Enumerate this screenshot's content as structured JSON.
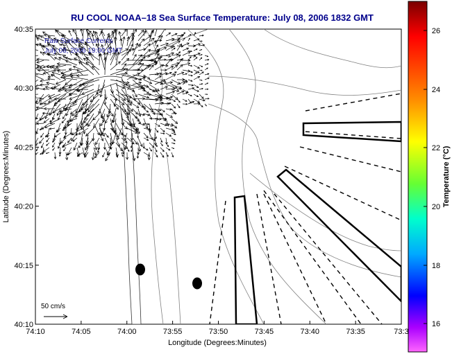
{
  "title": "RU COOL  NOAA–18  Sea Surface Temperature:  July 08, 2006 1832 GMT",
  "overlay": {
    "label": "Raw Surface Currents",
    "timestamp": "July 08, 2006 19:00 GMT",
    "scale_label": "50 cm/s"
  },
  "map": {
    "lon_ticks": [
      "74:10",
      "74:05",
      "74:00",
      "73:55",
      "73:50",
      "73:45",
      "73:40",
      "73:35",
      "73:3"
    ],
    "lat_ticks": [
      "40:35",
      "40:30",
      "40:25",
      "40:20",
      "40:15",
      "40:10"
    ],
    "xlabel": "Longitude (Degrees:Minutes)",
    "ylabel": "Latitude (Degrees:Minutes)"
  },
  "colorbar": {
    "label": "Temperature (°C)",
    "ticks": [
      "26",
      "24",
      "22",
      "20",
      "18",
      "16"
    ]
  },
  "colors": {
    "title": "#00008b",
    "overlay_text": "#1a1aa0",
    "land": "#ffffff",
    "contour": "#808080"
  }
}
